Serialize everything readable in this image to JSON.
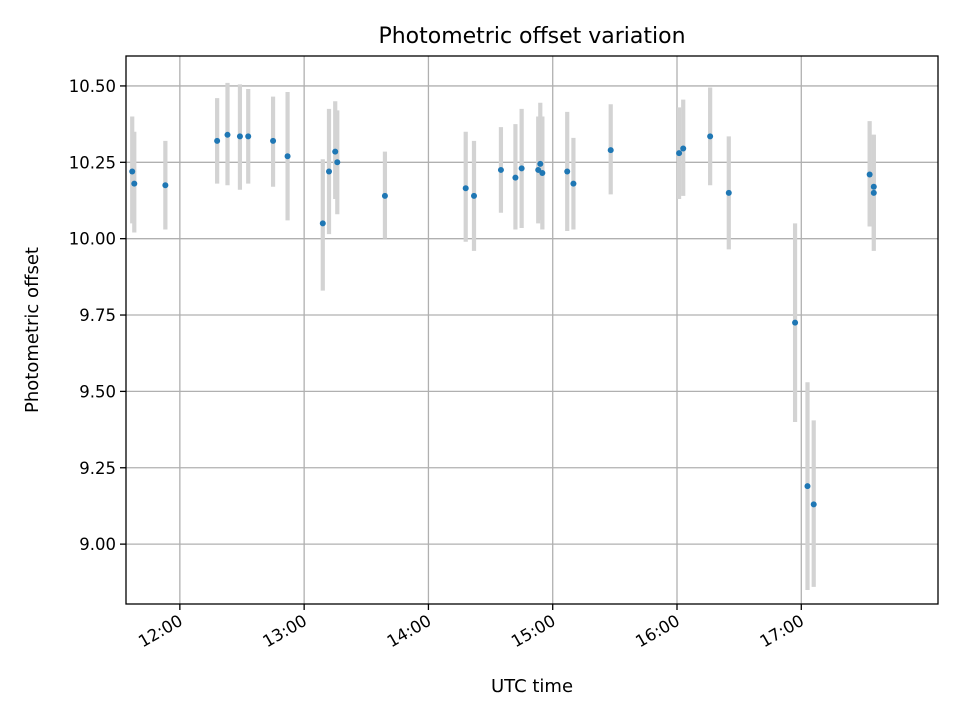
{
  "chart_data": {
    "type": "scatter",
    "title": "Photometric offset variation",
    "xlabel": "UTC time",
    "ylabel": "Photometric offset",
    "x_is_time": true,
    "xlim": [
      "11:34",
      "18:06"
    ],
    "ylim": [
      8.804,
      10.598
    ],
    "x_ticks": [
      "12:00",
      "13:00",
      "14:00",
      "15:00",
      "16:00",
      "17:00"
    ],
    "y_ticks": [
      "9.00",
      "9.25",
      "9.50",
      "9.75",
      "10.00",
      "10.25",
      "10.50"
    ],
    "grid": true,
    "point_color": "#1f77b4",
    "errorbar_color": "#d3d3d3",
    "series": [
      {
        "points": [
          {
            "x": "11:37",
            "y": 10.22,
            "ylo": 10.05,
            "yhi": 10.4
          },
          {
            "x": "11:38",
            "y": 10.18,
            "ylo": 10.02,
            "yhi": 10.35
          },
          {
            "x": "11:53",
            "y": 10.175,
            "ylo": 10.03,
            "yhi": 10.32
          },
          {
            "x": "12:18",
            "y": 10.32,
            "ylo": 10.18,
            "yhi": 10.46
          },
          {
            "x": "12:23",
            "y": 10.34,
            "ylo": 10.175,
            "yhi": 10.51
          },
          {
            "x": "12:29",
            "y": 10.335,
            "ylo": 10.16,
            "yhi": 10.505
          },
          {
            "x": "12:33",
            "y": 10.335,
            "ylo": 10.18,
            "yhi": 10.49
          },
          {
            "x": "12:45",
            "y": 10.32,
            "ylo": 10.17,
            "yhi": 10.465
          },
          {
            "x": "12:52",
            "y": 10.27,
            "ylo": 10.06,
            "yhi": 10.48
          },
          {
            "x": "13:09",
            "y": 10.05,
            "ylo": 9.83,
            "yhi": 10.26
          },
          {
            "x": "13:12",
            "y": 10.22,
            "ylo": 10.015,
            "yhi": 10.425
          },
          {
            "x": "13:15",
            "y": 10.285,
            "ylo": 10.13,
            "yhi": 10.45
          },
          {
            "x": "13:16",
            "y": 10.25,
            "ylo": 10.08,
            "yhi": 10.42
          },
          {
            "x": "13:39",
            "y": 10.14,
            "ylo": 10.0,
            "yhi": 10.285
          },
          {
            "x": "14:18",
            "y": 10.165,
            "ylo": 9.99,
            "yhi": 10.35
          },
          {
            "x": "14:22",
            "y": 10.14,
            "ylo": 9.96,
            "yhi": 10.32
          },
          {
            "x": "14:35",
            "y": 10.225,
            "ylo": 10.085,
            "yhi": 10.365
          },
          {
            "x": "14:42",
            "y": 10.2,
            "ylo": 10.03,
            "yhi": 10.375
          },
          {
            "x": "14:45",
            "y": 10.23,
            "ylo": 10.035,
            "yhi": 10.425
          },
          {
            "x": "14:53",
            "y": 10.225,
            "ylo": 10.05,
            "yhi": 10.4
          },
          {
            "x": "14:54",
            "y": 10.245,
            "ylo": 10.06,
            "yhi": 10.445
          },
          {
            "x": "14:55",
            "y": 10.215,
            "ylo": 10.03,
            "yhi": 10.4
          },
          {
            "x": "15:07",
            "y": 10.22,
            "ylo": 10.025,
            "yhi": 10.415
          },
          {
            "x": "15:10",
            "y": 10.18,
            "ylo": 10.03,
            "yhi": 10.33
          },
          {
            "x": "15:28",
            "y": 10.29,
            "ylo": 10.145,
            "yhi": 10.44
          },
          {
            "x": "16:01",
            "y": 10.28,
            "ylo": 10.13,
            "yhi": 10.43
          },
          {
            "x": "16:03",
            "y": 10.295,
            "ylo": 10.14,
            "yhi": 10.455
          },
          {
            "x": "16:16",
            "y": 10.335,
            "ylo": 10.175,
            "yhi": 10.495
          },
          {
            "x": "16:25",
            "y": 10.15,
            "ylo": 9.965,
            "yhi": 10.335
          },
          {
            "x": "16:57",
            "y": 9.725,
            "ylo": 9.4,
            "yhi": 10.05
          },
          {
            "x": "17:03",
            "y": 9.19,
            "ylo": 8.85,
            "yhi": 9.53
          },
          {
            "x": "17:06",
            "y": 9.13,
            "ylo": 8.86,
            "yhi": 9.405
          },
          {
            "x": "17:33",
            "y": 10.21,
            "ylo": 10.04,
            "yhi": 10.385
          },
          {
            "x": "17:35",
            "y": 10.15,
            "ylo": 9.96,
            "yhi": 10.34
          },
          {
            "x": "17:35",
            "y": 10.17,
            "ylo": 10.0,
            "yhi": 10.34
          }
        ]
      }
    ]
  }
}
